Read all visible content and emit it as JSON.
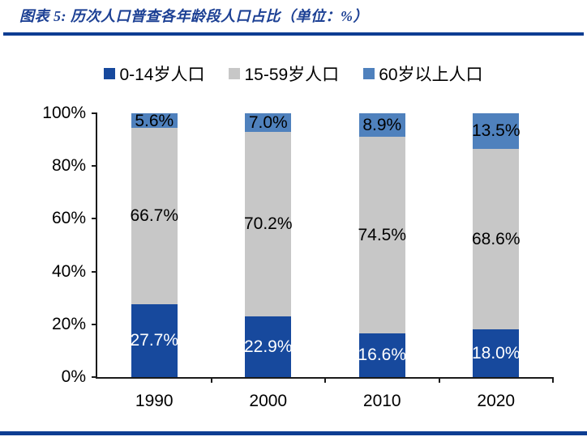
{
  "header": {
    "title": "图表 5:  历次人口普查各年龄段人口占比（单位：%）"
  },
  "colors": {
    "title_text": "#1c4094",
    "divider": "#0d3d92",
    "axis": "#1a1a1a",
    "series_child": "#17499d",
    "series_working": "#c7c7c7",
    "series_elder": "#4f81bd"
  },
  "chart_data": {
    "type": "bar",
    "stacked": true,
    "title": "历次人口普查各年龄段人口占比",
    "unit": "%",
    "categories": [
      "1990",
      "2000",
      "2010",
      "2020"
    ],
    "series": [
      {
        "name": "0-14岁人口",
        "color": "#17499d",
        "label_color": "#ffffff",
        "values": [
          27.7,
          22.9,
          16.6,
          18.0
        ],
        "labels": [
          "27.7%",
          "22.9%",
          "16.6%",
          "18.0%"
        ]
      },
      {
        "name": "15-59岁人口",
        "color": "#c7c7c7",
        "label_color": "#000000",
        "values": [
          66.7,
          70.2,
          74.5,
          68.6
        ],
        "labels": [
          "66.7%",
          "70.2%",
          "74.5%",
          "68.6%"
        ]
      },
      {
        "name": "60岁以上人口",
        "color": "#4f81bd",
        "label_color": "#000000",
        "values": [
          5.6,
          7.0,
          8.9,
          13.5
        ],
        "labels": [
          "5.6%",
          "7.0%",
          "8.9%",
          "13.5%"
        ]
      }
    ],
    "y_ticks": [
      "0%",
      "20%",
      "40%",
      "60%",
      "80%",
      "100%"
    ],
    "y_tick_values": [
      0,
      20,
      40,
      60,
      80,
      100
    ],
    "ylim": [
      0,
      100
    ],
    "grid": false,
    "legend_position": "top"
  }
}
